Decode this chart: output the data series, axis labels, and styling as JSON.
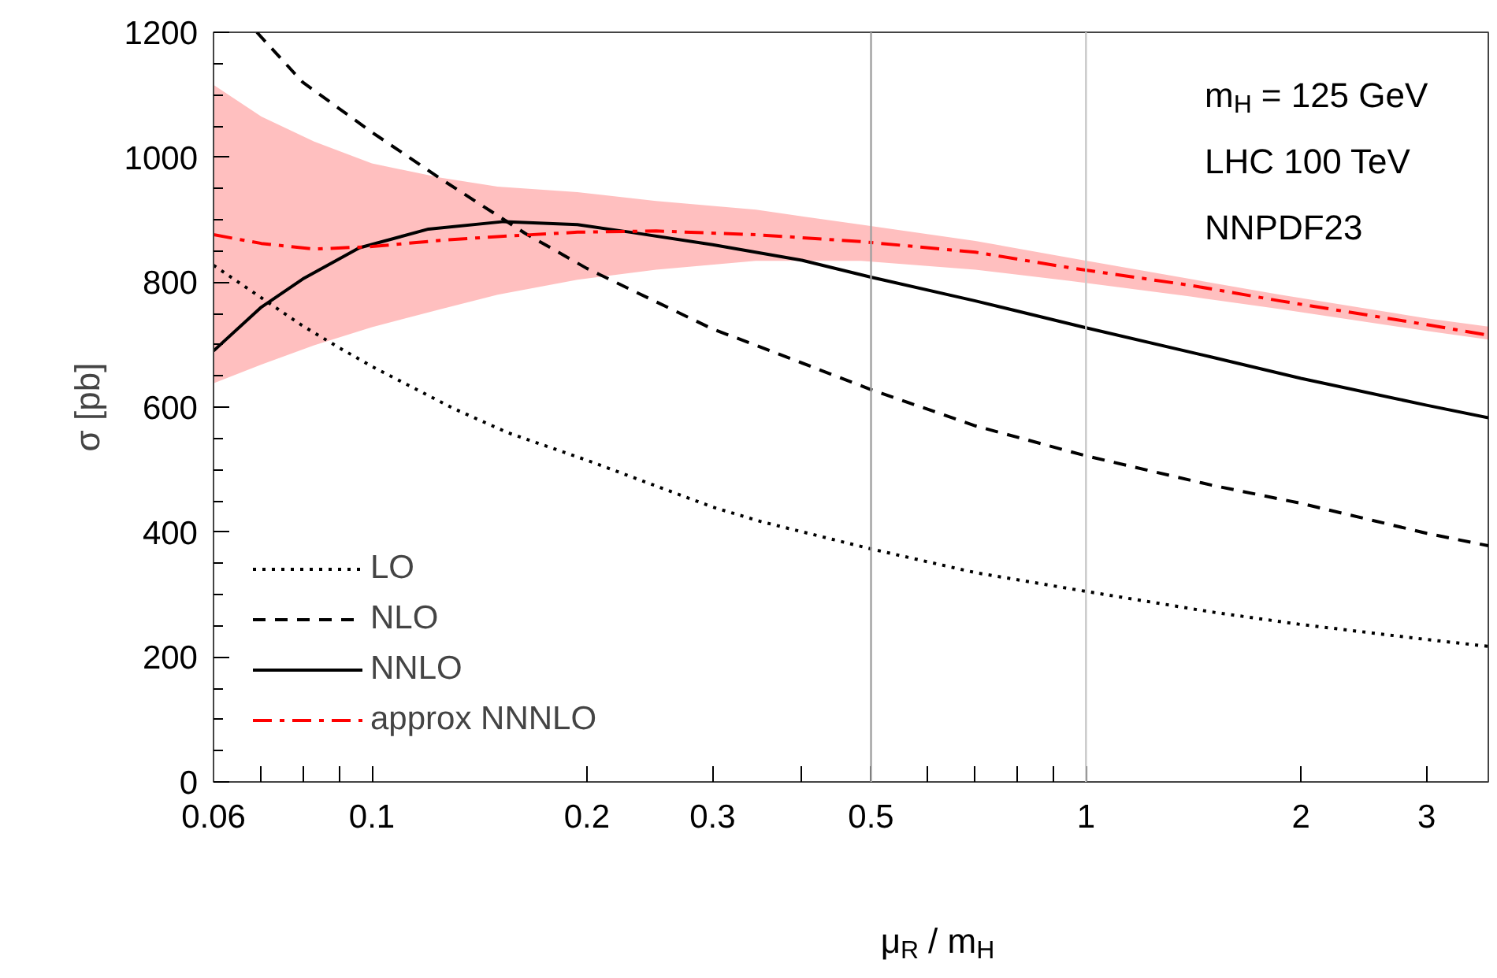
{
  "chart_data": {
    "type": "line",
    "xlabel": "μ$_{R}$ / m$_{H}$",
    "ylabel": "σ [pb]",
    "annotations": [
      "m$_{H}$ = 125 GeV",
      "LHC 100 TeV",
      "NNPDF23"
    ],
    "log": "x",
    "grid": false,
    "legend": "bottom left",
    "xlim": [
      0.06,
      3.66
    ],
    "ylim": [
      0,
      1200
    ],
    "xticks": [
      0.06,
      {
        "value": 0.07,
        "label": null
      },
      {
        "value": 0.08,
        "label": null
      },
      {
        "value": 0.09,
        "label": null
      },
      0.1,
      0.2,
      0.3,
      {
        "value": 0.4,
        "label": null
      },
      0.5,
      {
        "value": 0.6,
        "label": null
      },
      {
        "value": 0.7,
        "label": null
      },
      {
        "value": 0.8,
        "label": null
      },
      {
        "value": 0.9,
        "label": null
      },
      1,
      2,
      3
    ],
    "yticks": [
      0,
      200,
      400,
      600,
      800,
      1000,
      1200
    ],
    "ref_lines": [
      {
        "axis": "x",
        "value": 0.5,
        "label": null,
        "color": "#a0a0a0"
      },
      {
        "axis": "x",
        "value": 1,
        "label": null,
        "color": "#c8c8c8"
      }
    ],
    "series": [
      {
        "name": "LO",
        "color": "#000000",
        "line_style": "dotted",
        "x": [
          0.06,
          0.07,
          0.08,
          0.09,
          0.1,
          0.13,
          0.155,
          0.2,
          0.3,
          0.35,
          0.5,
          0.7,
          1,
          1.5,
          2,
          3,
          3.66
        ],
        "values": [
          827,
          775,
          730,
          695,
          665,
          598,
          559,
          515,
          440,
          417,
          373,
          335,
          305,
          272,
          252,
          228,
          217
        ]
      },
      {
        "name": "NLO",
        "color": "#000000",
        "line_style": "dashed",
        "x": [
          0.069,
          0.08,
          0.1,
          0.125,
          0.164,
          0.2,
          0.3,
          0.345,
          0.5,
          0.7,
          1,
          1.5,
          2,
          3,
          3.66
        ],
        "values": [
          1200,
          1120,
          1040,
          965,
          878,
          822,
          725,
          699,
          628,
          570,
          522,
          475,
          446,
          398,
          378
        ]
      },
      {
        "name": "NNLO",
        "color": "#000000",
        "line_style": "solid",
        "x": [
          0.06,
          0.07,
          0.08,
          0.096,
          0.12,
          0.153,
          0.194,
          0.23,
          0.3,
          0.4,
          0.5,
          0.7,
          1,
          1.5,
          2,
          3,
          3.66
        ],
        "values": [
          690,
          760,
          805,
          855,
          885,
          897,
          892,
          880,
          860,
          835,
          808,
          770,
          727,
          680,
          646,
          603,
          583
        ]
      },
      {
        "name": "approx NNNLO",
        "color": "#ff0000",
        "line_style": "dashdot",
        "x": [
          0.06,
          0.07,
          0.083,
          0.1,
          0.125,
          0.15,
          0.194,
          0.25,
          0.345,
          0.484,
          0.7,
          0.95,
          1.4,
          1.87,
          3,
          3.66
        ],
        "values": [
          876,
          862,
          853,
          857,
          867,
          873,
          880,
          882,
          876,
          865,
          848,
          823,
          795,
          770,
          732,
          715
        ],
        "upper": [
          1116,
          1065,
          1025,
          990,
          967,
          953,
          944,
          930,
          916,
          892,
          866,
          839,
          805,
          780,
          742,
          729
        ],
        "lower": [
          638,
          668,
          699,
          728,
          757,
          780,
          804,
          820,
          834,
          834,
          820,
          802,
          777,
          757,
          722,
          708
        ]
      }
    ]
  }
}
